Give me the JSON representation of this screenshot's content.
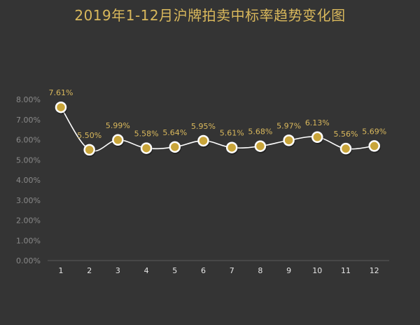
{
  "chart_data": {
    "type": "line",
    "title": "2019年1-12月沪牌拍卖中标率趋势变化图",
    "categories": [
      "1",
      "2",
      "3",
      "4",
      "5",
      "6",
      "7",
      "8",
      "9",
      "10",
      "11",
      "12"
    ],
    "series": [
      {
        "values": [
          7.61,
          5.5,
          5.99,
          5.58,
          5.64,
          5.95,
          5.61,
          5.68,
          5.97,
          6.13,
          5.56,
          5.69
        ],
        "labels": [
          "7.61%",
          "5.50%",
          "5.99%",
          "5.58%",
          "5.64%",
          "5.95%",
          "5.61%",
          "5.68%",
          "5.97%",
          "6.13%",
          "5.56%",
          "5.69%"
        ]
      }
    ],
    "yticks": [
      "0.00%",
      "1.00%",
      "2.00%",
      "3.00%",
      "4.00%",
      "5.00%",
      "6.00%",
      "7.00%",
      "8.00%"
    ],
    "ylim": [
      0,
      8
    ],
    "grid": false,
    "legend": "none",
    "colors": {
      "background": "#343434",
      "title": "#d9b85c",
      "line": "#ffffff",
      "marker_fill": "#c9a53a",
      "marker_stroke": "#ffffff",
      "data_label": "#d9b85c",
      "tick_label": "#8a8a8a",
      "x_label": "#e6e6e6",
      "axis": "#5a5a5a"
    }
  }
}
